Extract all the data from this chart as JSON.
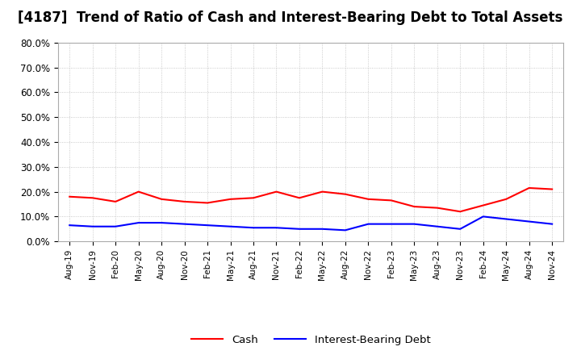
{
  "title": "[4187]  Trend of Ratio of Cash and Interest-Bearing Debt to Total Assets",
  "x_labels": [
    "Aug-19",
    "Nov-19",
    "Feb-20",
    "May-20",
    "Aug-20",
    "Nov-20",
    "Feb-21",
    "May-21",
    "Aug-21",
    "Nov-21",
    "Feb-22",
    "May-22",
    "Aug-22",
    "Nov-22",
    "Feb-23",
    "May-23",
    "Aug-23",
    "Nov-23",
    "Feb-24",
    "May-24",
    "Aug-24",
    "Nov-24"
  ],
  "cash": [
    18.0,
    17.5,
    16.0,
    20.0,
    17.0,
    16.0,
    15.5,
    17.0,
    17.5,
    20.0,
    17.5,
    20.0,
    19.0,
    17.0,
    16.5,
    14.0,
    13.5,
    12.0,
    14.5,
    17.0,
    21.5,
    21.0
  ],
  "interest_bearing_debt": [
    6.5,
    6.0,
    6.0,
    7.5,
    7.5,
    7.0,
    6.5,
    6.0,
    5.5,
    5.5,
    5.0,
    5.0,
    4.5,
    7.0,
    7.0,
    7.0,
    6.0,
    5.0,
    10.0,
    9.0,
    8.0,
    7.0
  ],
  "cash_color": "#FF0000",
  "debt_color": "#0000FF",
  "background_color": "#FFFFFF",
  "plot_background": "#FFFFFF",
  "ylim": [
    0,
    80
  ],
  "yticks": [
    0,
    10,
    20,
    30,
    40,
    50,
    60,
    70,
    80
  ],
  "grid_color": "#AAAAAA",
  "title_fontsize": 12,
  "legend_cash": "Cash",
  "legend_debt": "Interest-Bearing Debt"
}
